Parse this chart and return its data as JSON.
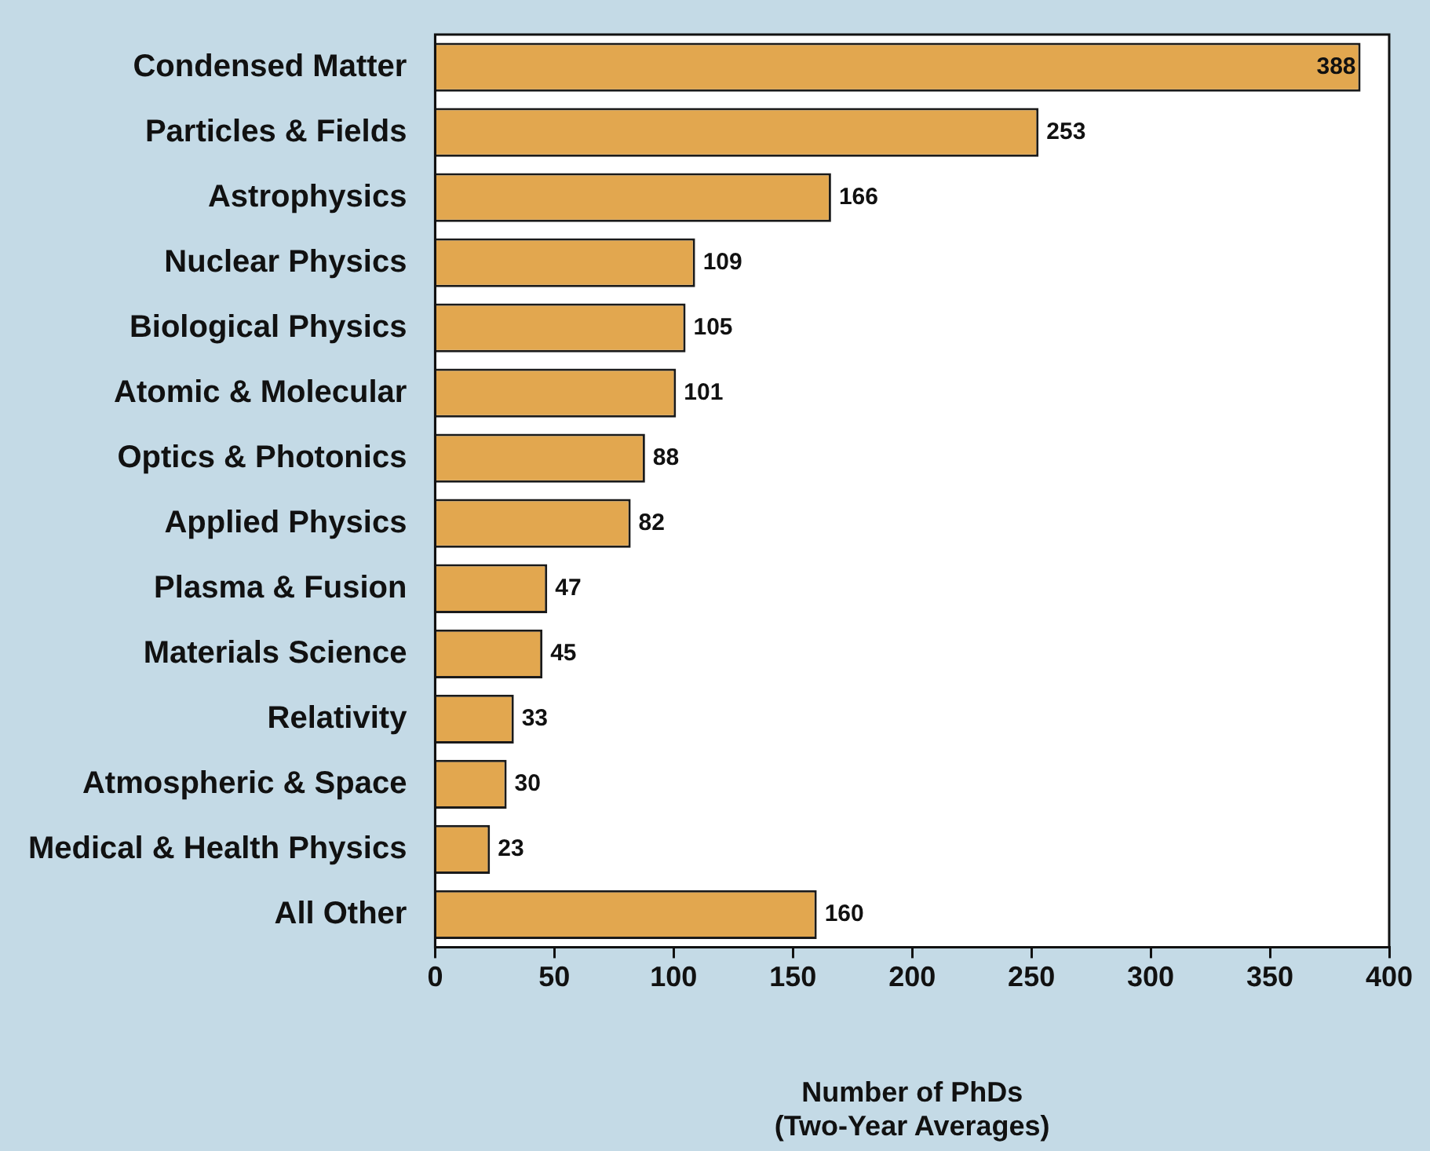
{
  "chart_data": {
    "type": "bar",
    "orientation": "horizontal",
    "xlabel": "Number of PhDs\n(Two-Year Averages)",
    "categories": [
      "Condensed Matter",
      "Particles & Fields",
      "Astrophysics",
      "Nuclear Physics",
      "Biological Physics",
      "Atomic & Molecular",
      "Optics & Photonics",
      "Applied Physics",
      "Plasma & Fusion",
      "Materials Science",
      "Relativity",
      "Atmospheric & Space",
      "Medical & Health Physics",
      "All Other"
    ],
    "values": [
      388,
      253,
      166,
      109,
      105,
      101,
      88,
      82,
      47,
      45,
      33,
      30,
      23,
      160
    ],
    "color": "#e2a74f",
    "xlim": [
      0,
      400
    ],
    "xticks": [
      0,
      50,
      100,
      150,
      200,
      250,
      300,
      350,
      400
    ],
    "grid": false,
    "legend": false,
    "data_labels": true
  }
}
